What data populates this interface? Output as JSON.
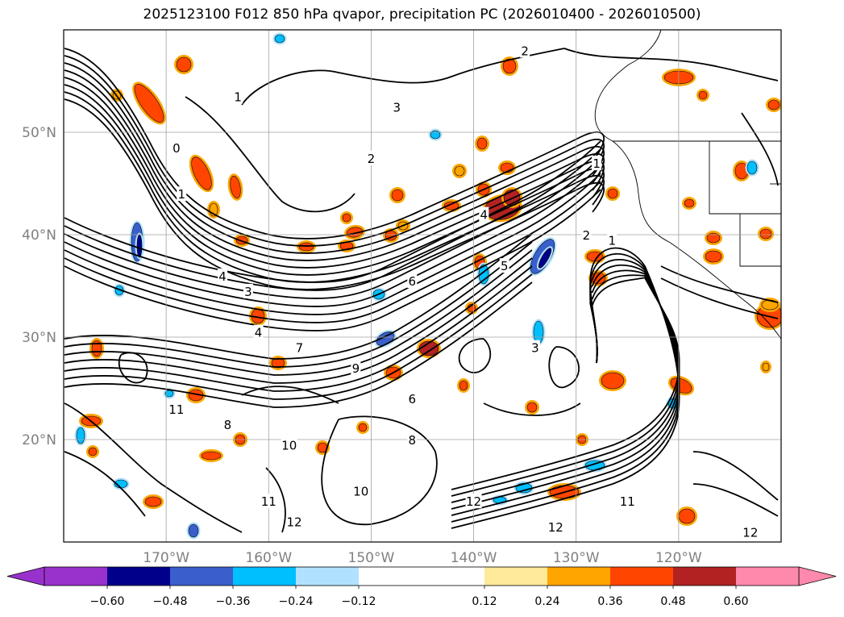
{
  "title": "2025123100 F012 850 hPa qvapor, precipitation PC (2026010400 - 2026010500)",
  "chart_data": {
    "type": "map",
    "title": "2025123100 F012 850 hPa qvapor, precipitation PC (2026010400 - 2026010500)",
    "map_extent": {
      "lon_min": -180,
      "lon_max": -110,
      "lat_min": 10,
      "lat_max": 60
    },
    "grid": true,
    "x_ticks": [
      {
        "lon": -170,
        "label": "170°W"
      },
      {
        "lon": -160,
        "label": "160°W"
      },
      {
        "lon": -150,
        "label": "150°W"
      },
      {
        "lon": -140,
        "label": "140°W"
      },
      {
        "lon": -130,
        "label": "130°W"
      },
      {
        "lon": -120,
        "label": "120°W"
      }
    ],
    "y_ticks": [
      {
        "lat": 50,
        "label": "50°N"
      },
      {
        "lat": 40,
        "label": "40°N"
      },
      {
        "lat": 30,
        "label": "30°N"
      },
      {
        "lat": 20,
        "label": "20°N"
      }
    ],
    "colorbar": {
      "orientation": "horizontal",
      "extend": "both",
      "levels": [
        -0.72,
        -0.6,
        -0.48,
        -0.36,
        -0.24,
        -0.12,
        0.12,
        0.24,
        0.36,
        0.48,
        0.6,
        0.72
      ],
      "colors": [
        "#9932cc",
        "#00008b",
        "#3a5fcd",
        "#00bfff",
        "#b0e2ff",
        "#ffffff",
        "#ffe99a",
        "#ffa500",
        "#ff4500",
        "#b22222",
        "#ff89ac"
      ],
      "ticks": [
        {
          "value": -0.6,
          "label": "−0.60"
        },
        {
          "value": -0.48,
          "label": "−0.48"
        },
        {
          "value": -0.36,
          "label": "−0.36"
        },
        {
          "value": -0.24,
          "label": "−0.24"
        },
        {
          "value": -0.12,
          "label": "−0.12"
        },
        {
          "value": 0.12,
          "label": "0.12"
        },
        {
          "value": 0.24,
          "label": "0.24"
        },
        {
          "value": 0.36,
          "label": "0.36"
        },
        {
          "value": 0.48,
          "label": "0.48"
        },
        {
          "value": 0.6,
          "label": "0.60"
        }
      ]
    },
    "contours": {
      "field": "850 hPa qvapor",
      "color": "#000000",
      "labels": [
        {
          "text": "0",
          "lon": -169,
          "lat": 48.5
        },
        {
          "text": "1",
          "lon": -168.5,
          "lat": 44
        },
        {
          "text": "1",
          "lon": -163,
          "lat": 53.5
        },
        {
          "text": "2",
          "lon": -135,
          "lat": 58
        },
        {
          "text": "2",
          "lon": -150,
          "lat": 47.5
        },
        {
          "text": "3",
          "lon": -147.5,
          "lat": 52.5
        },
        {
          "text": "3",
          "lon": -162,
          "lat": 34.5
        },
        {
          "text": "4",
          "lon": -164.5,
          "lat": 36
        },
        {
          "text": "4",
          "lon": -139,
          "lat": 42
        },
        {
          "text": "4",
          "lon": -161,
          "lat": 30.5
        },
        {
          "text": "5",
          "lon": -137,
          "lat": 37
        },
        {
          "text": "6",
          "lon": -146,
          "lat": 35.5
        },
        {
          "text": "6",
          "lon": -146,
          "lat": 24
        },
        {
          "text": "7",
          "lon": -157,
          "lat": 29
        },
        {
          "text": "8",
          "lon": -164,
          "lat": 21.5
        },
        {
          "text": "8",
          "lon": -146,
          "lat": 20
        },
        {
          "text": "9",
          "lon": -151.5,
          "lat": 27
        },
        {
          "text": "10",
          "lon": -158,
          "lat": 19.5
        },
        {
          "text": "10",
          "lon": -151,
          "lat": 15
        },
        {
          "text": "11",
          "lon": -169,
          "lat": 23
        },
        {
          "text": "11",
          "lon": -160,
          "lat": 14
        },
        {
          "text": "11",
          "lon": -125,
          "lat": 14
        },
        {
          "text": "12",
          "lon": -157.5,
          "lat": 12
        },
        {
          "text": "12",
          "lon": -140,
          "lat": 14
        },
        {
          "text": "12",
          "lon": -132,
          "lat": 11.5
        },
        {
          "text": "12",
          "lon": -113,
          "lat": 11
        },
        {
          "text": "1",
          "lon": -128,
          "lat": 47
        },
        {
          "text": "2",
          "lon": -129,
          "lat": 40
        },
        {
          "text": "1",
          "lon": -126.5,
          "lat": 39.5
        },
        {
          "text": "3",
          "lon": -134,
          "lat": 29
        }
      ]
    }
  }
}
